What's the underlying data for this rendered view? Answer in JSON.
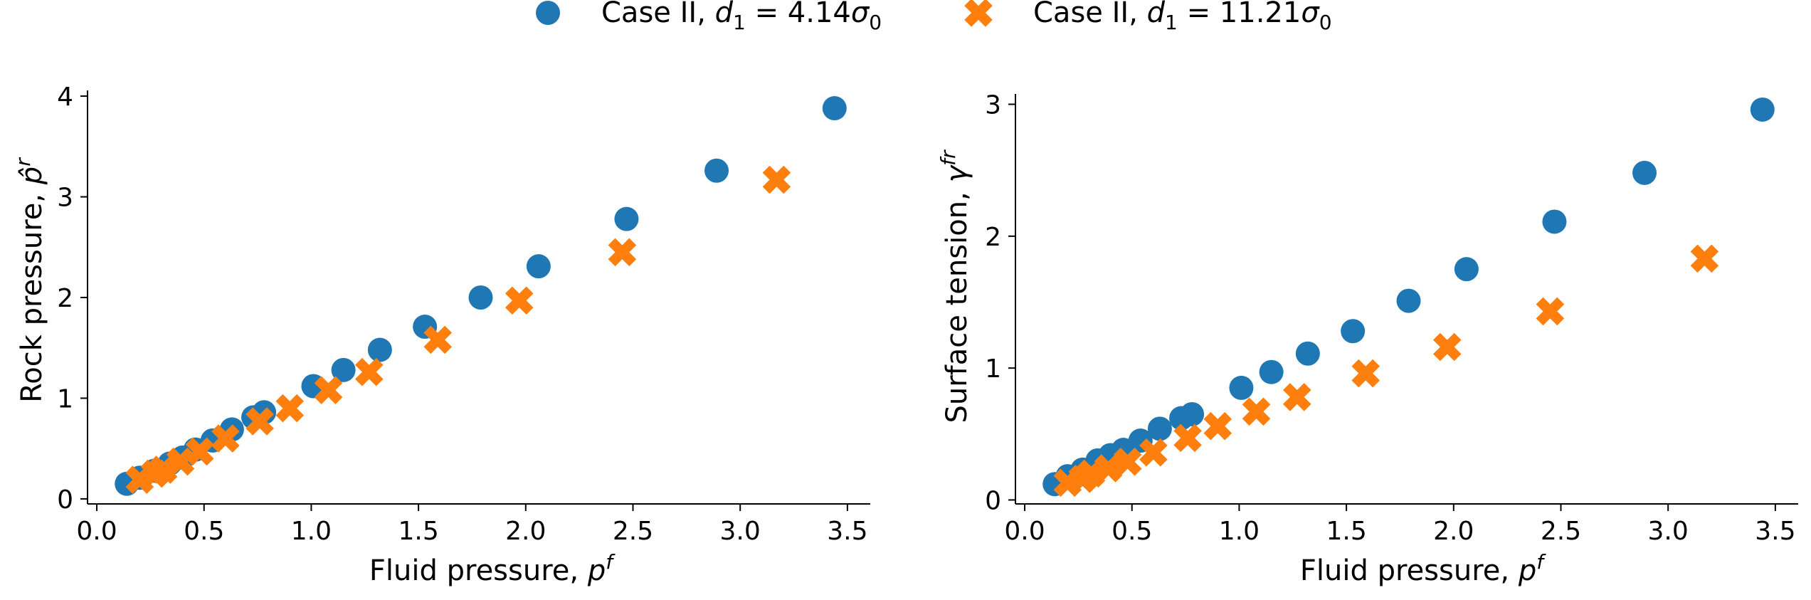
{
  "legend": {
    "placement": "top-center",
    "entries": [
      {
        "series": 0,
        "prefix": "Case II, ",
        "label": "Case II, d_1 = 4.14σ_0",
        "marker": "circle",
        "color": "#1f77b4"
      },
      {
        "series": 1,
        "prefix": "Case II, ",
        "label": "Case II, d_1 = 11.21σ_0",
        "marker": "x",
        "color": "#ff7f0e"
      }
    ]
  },
  "colors": {
    "series0": "#1f77b4",
    "series1": "#ff7f0e",
    "axis": "#000000"
  },
  "chart_data": [
    {
      "type": "scatter",
      "xlabel": "Fluid pressure, p^f",
      "ylabel": "Rock pressure, p̂^r",
      "xlim": [
        -0.03,
        3.6
      ],
      "ylim": [
        -0.05,
        4.05
      ],
      "xticks": [
        0.0,
        0.5,
        1.0,
        1.5,
        2.0,
        2.5,
        3.0,
        3.5
      ],
      "xtick_labels": [
        "0.0",
        "0.5",
        "1.0",
        "1.5",
        "2.0",
        "2.5",
        "3.0",
        "3.5"
      ],
      "yticks": [
        0,
        1,
        2,
        3,
        4
      ],
      "ytick_labels": [
        "0",
        "1",
        "2",
        "3",
        "4"
      ],
      "series": [
        {
          "name": "Case II, d_1 = 4.14σ_0",
          "marker": "circle",
          "x": [
            0.14,
            0.2,
            0.27,
            0.34,
            0.4,
            0.46,
            0.54,
            0.63,
            0.73,
            0.78,
            1.01,
            1.15,
            1.32,
            1.53,
            1.79,
            2.06,
            2.47,
            2.89,
            3.44
          ],
          "y": [
            0.15,
            0.21,
            0.28,
            0.35,
            0.41,
            0.49,
            0.58,
            0.69,
            0.81,
            0.86,
            1.12,
            1.28,
            1.48,
            1.71,
            2.0,
            2.31,
            2.78,
            3.26,
            3.88
          ]
        },
        {
          "name": "Case II, d_1 = 11.21σ_0",
          "marker": "x",
          "x": [
            0.2,
            0.27,
            0.31,
            0.39,
            0.48,
            0.6,
            0.76,
            0.9,
            1.08,
            1.27,
            1.59,
            1.97,
            2.45,
            3.17
          ],
          "y": [
            0.19,
            0.25,
            0.29,
            0.37,
            0.47,
            0.6,
            0.77,
            0.9,
            1.08,
            1.26,
            1.58,
            1.97,
            2.45,
            3.17
          ]
        }
      ]
    },
    {
      "type": "scatter",
      "xlabel": "Fluid pressure, p^f",
      "ylabel": "Surface tension, γ^fr",
      "xlim": [
        -0.03,
        3.6
      ],
      "ylim": [
        -0.03,
        3.1
      ],
      "xticks": [
        0.0,
        0.5,
        1.0,
        1.5,
        2.0,
        2.5,
        3.0,
        3.5
      ],
      "xtick_labels": [
        "0.0",
        "0.5",
        "1.0",
        "1.5",
        "2.0",
        "2.5",
        "3.0",
        "3.5"
      ],
      "yticks": [
        0,
        1,
        2,
        3
      ],
      "ytick_labels": [
        "0",
        "1",
        "2",
        "3"
      ],
      "series": [
        {
          "name": "Case II, d_1 = 4.14σ_0",
          "marker": "circle",
          "x": [
            0.14,
            0.2,
            0.27,
            0.34,
            0.4,
            0.46,
            0.54,
            0.63,
            0.73,
            0.78,
            1.01,
            1.15,
            1.32,
            1.53,
            1.79,
            2.06,
            2.47,
            2.89,
            3.44
          ],
          "y": [
            0.12,
            0.18,
            0.23,
            0.3,
            0.34,
            0.38,
            0.45,
            0.54,
            0.62,
            0.65,
            0.85,
            0.97,
            1.11,
            1.28,
            1.51,
            1.75,
            2.11,
            2.48,
            2.96
          ]
        },
        {
          "name": "Case II, d_1 = 11.21σ_0",
          "marker": "x",
          "x": [
            0.2,
            0.27,
            0.31,
            0.39,
            0.48,
            0.6,
            0.76,
            0.9,
            1.08,
            1.27,
            1.59,
            1.97,
            2.45,
            3.17
          ],
          "y": [
            0.13,
            0.16,
            0.2,
            0.24,
            0.29,
            0.36,
            0.47,
            0.56,
            0.67,
            0.78,
            0.96,
            1.16,
            1.43,
            1.83
          ]
        }
      ]
    }
  ]
}
